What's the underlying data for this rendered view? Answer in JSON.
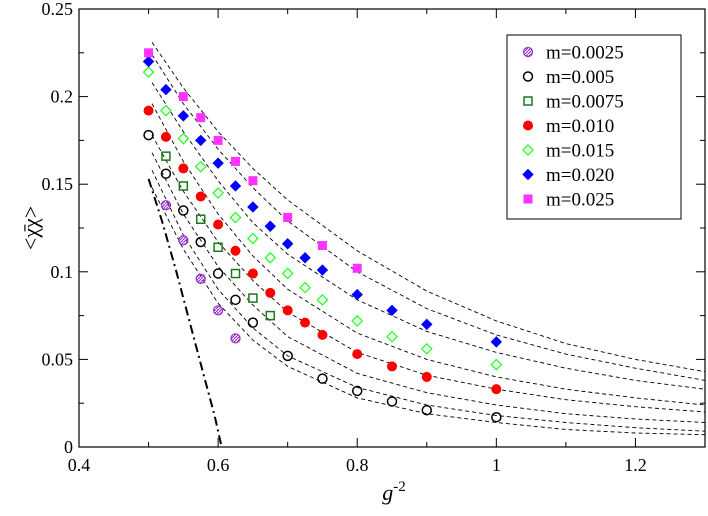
{
  "chart_data": {
    "type": "scatter",
    "xlabel": "g",
    "xlabel_superscript": "-2",
    "ylabel": "<χ̄χ>",
    "xlim": [
      0.4,
      1.3
    ],
    "ylim": [
      0,
      0.25
    ],
    "xticks": [
      0.4,
      0.6,
      0.8,
      1,
      1.2
    ],
    "xtick_labels": [
      "0.4",
      "0.6",
      "0.8",
      "1",
      "1.2"
    ],
    "yticks": [
      0,
      0.05,
      0.1,
      0.15,
      0.2,
      0.25
    ],
    "ytick_labels": [
      "0",
      "0.05",
      "0.1",
      "0.15",
      "0.2",
      "0.25"
    ],
    "grid": false,
    "legend_position": "top-right",
    "series": [
      {
        "name": "m=0.0025",
        "marker": "hatched-circle",
        "color": "#9933cc",
        "x": [
          0.525,
          0.55,
          0.575,
          0.6,
          0.625
        ],
        "y": [
          0.138,
          0.118,
          0.096,
          0.078,
          0.062
        ]
      },
      {
        "name": "m=0.005",
        "marker": "open-circle",
        "color": "#000000",
        "x": [
          0.5,
          0.525,
          0.55,
          0.575,
          0.6,
          0.625,
          0.65,
          0.7,
          0.75,
          0.8,
          0.85,
          0.9,
          1.0
        ],
        "y": [
          0.178,
          0.156,
          0.135,
          0.117,
          0.099,
          0.084,
          0.071,
          0.052,
          0.039,
          0.032,
          0.026,
          0.021,
          0.017
        ]
      },
      {
        "name": "m=0.0075",
        "marker": "open-square",
        "color": "#1a7a1a",
        "x": [
          0.525,
          0.55,
          0.575,
          0.6,
          0.625,
          0.65,
          0.675
        ],
        "y": [
          0.166,
          0.149,
          0.13,
          0.114,
          0.099,
          0.085,
          0.075
        ]
      },
      {
        "name": "m=0.010",
        "marker": "filled-circle",
        "color": "#ff0000",
        "x": [
          0.5,
          0.525,
          0.55,
          0.575,
          0.6,
          0.625,
          0.65,
          0.675,
          0.7,
          0.725,
          0.75,
          0.8,
          0.85,
          0.9,
          1.0
        ],
        "y": [
          0.192,
          0.177,
          0.159,
          0.143,
          0.127,
          0.112,
          0.099,
          0.088,
          0.078,
          0.071,
          0.064,
          0.053,
          0.046,
          0.04,
          0.033
        ]
      },
      {
        "name": "m=0.015",
        "marker": "open-diamond",
        "color": "#33ff33",
        "x": [
          0.5,
          0.525,
          0.55,
          0.575,
          0.6,
          0.625,
          0.65,
          0.675,
          0.7,
          0.725,
          0.75,
          0.8,
          0.85,
          0.9,
          1.0
        ],
        "y": [
          0.214,
          0.192,
          0.176,
          0.16,
          0.145,
          0.131,
          0.119,
          0.108,
          0.099,
          0.091,
          0.084,
          0.072,
          0.063,
          0.056,
          0.047
        ]
      },
      {
        "name": "m=0.020",
        "marker": "filled-diamond",
        "color": "#0000ff",
        "x": [
          0.5,
          0.525,
          0.55,
          0.575,
          0.6,
          0.625,
          0.65,
          0.675,
          0.7,
          0.725,
          0.75,
          0.8,
          0.85,
          0.9,
          1.0
        ],
        "y": [
          0.22,
          0.204,
          0.189,
          0.175,
          0.162,
          0.149,
          0.137,
          0.126,
          0.116,
          0.108,
          0.101,
          0.087,
          0.078,
          0.07,
          0.06
        ]
      },
      {
        "name": "m=0.025",
        "marker": "filled-square",
        "color": "#ff33ff",
        "x": [
          0.5,
          0.55,
          0.575,
          0.6,
          0.625,
          0.65,
          0.7,
          0.75,
          0.8
        ],
        "y": [
          0.225,
          0.2,
          0.188,
          0.175,
          0.163,
          0.152,
          0.131,
          0.115,
          0.102
        ]
      }
    ],
    "fit_curves": [
      {
        "x": [
          0.505,
          0.55,
          0.6,
          0.65,
          0.7,
          0.8,
          0.9,
          1.0,
          1.1,
          1.2,
          1.3
        ],
        "y": [
          0.231,
          0.205,
          0.18,
          0.159,
          0.141,
          0.112,
          0.089,
          0.072,
          0.059,
          0.05,
          0.043
        ]
      },
      {
        "x": [
          0.505,
          0.55,
          0.6,
          0.65,
          0.7,
          0.8,
          0.9,
          1.0,
          1.1,
          1.2,
          1.3
        ],
        "y": [
          0.224,
          0.196,
          0.17,
          0.148,
          0.129,
          0.1,
          0.079,
          0.064,
          0.053,
          0.045,
          0.038
        ]
      },
      {
        "x": [
          0.505,
          0.55,
          0.6,
          0.65,
          0.7,
          0.8,
          0.9,
          1.0,
          1.1,
          1.2,
          1.3
        ],
        "y": [
          0.208,
          0.18,
          0.152,
          0.128,
          0.11,
          0.084,
          0.066,
          0.054,
          0.045,
          0.038,
          0.033
        ]
      },
      {
        "x": [
          0.505,
          0.55,
          0.6,
          0.65,
          0.7,
          0.8,
          0.9,
          1.0,
          1.1,
          1.2,
          1.3
        ],
        "y": [
          0.196,
          0.163,
          0.133,
          0.109,
          0.09,
          0.065,
          0.05,
          0.04,
          0.033,
          0.028,
          0.024
        ]
      },
      {
        "x": [
          0.505,
          0.55,
          0.6,
          0.65,
          0.7,
          0.8,
          0.9,
          1.0,
          1.1,
          1.2,
          1.3
        ],
        "y": [
          0.178,
          0.146,
          0.117,
          0.095,
          0.077,
          0.054,
          0.041,
          0.033,
          0.027,
          0.023,
          0.02
        ]
      },
      {
        "x": [
          0.505,
          0.55,
          0.6,
          0.65,
          0.7,
          0.8,
          0.9,
          1.0,
          1.1,
          1.2,
          1.3
        ],
        "y": [
          0.168,
          0.133,
          0.103,
          0.081,
          0.063,
          0.042,
          0.031,
          0.024,
          0.019,
          0.016,
          0.014
        ]
      },
      {
        "x": [
          0.505,
          0.55,
          0.6,
          0.65,
          0.7,
          0.8,
          0.9,
          1.0,
          1.1,
          1.2,
          1.3
        ],
        "y": [
          0.158,
          0.121,
          0.09,
          0.068,
          0.052,
          0.034,
          0.024,
          0.018,
          0.014,
          0.011,
          0.009
        ]
      },
      {
        "x": [
          0.505,
          0.55,
          0.6,
          0.65,
          0.7,
          0.8,
          0.9,
          1.0,
          1.1,
          1.2,
          1.3
        ],
        "y": [
          0.148,
          0.113,
          0.082,
          0.061,
          0.046,
          0.028,
          0.019,
          0.014,
          0.01,
          0.008,
          0.007
        ]
      }
    ],
    "chiral_limit_curve": {
      "x": [
        0.5,
        0.52,
        0.54,
        0.56,
        0.58,
        0.595,
        0.605
      ],
      "y": [
        0.153,
        0.128,
        0.1,
        0.07,
        0.04,
        0.018,
        0.0
      ]
    }
  }
}
